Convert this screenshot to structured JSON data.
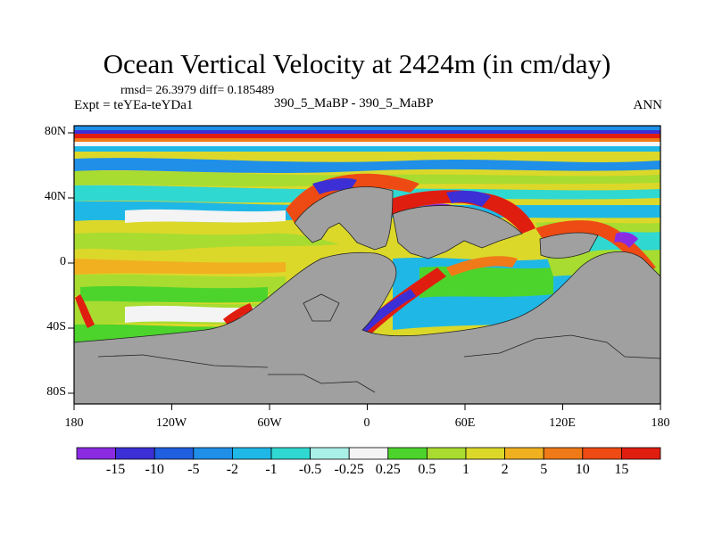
{
  "chart_data": {
    "type": "heatmap",
    "title": "Ocean Vertical Velocity at 2424m (in cm/day)",
    "stats_text": "rmsd= 26.3979 diff= 0.185489",
    "left_label": "Expt = teYEa-teYDa1",
    "center_label": "390_5_MaBP - 390_5_MaBP",
    "right_label": "ANN",
    "x_axis": {
      "ticks": [
        "180",
        "120W",
        "60W",
        "0",
        "60E",
        "120E",
        "180"
      ],
      "range": [
        -180,
        180
      ]
    },
    "y_axis": {
      "ticks": [
        "80N",
        "40N",
        "0",
        "40S",
        "80S"
      ],
      "range": [
        -90,
        90
      ]
    },
    "colorbar": {
      "levels": [
        "-15",
        "-10",
        "-5",
        "-2",
        "-1",
        "-0.5",
        "-0.25",
        "0.25",
        "0.5",
        "1",
        "2",
        "5",
        "10",
        "15"
      ],
      "colors": [
        "#8a2be2",
        "#3d2fd6",
        "#1f5fe0",
        "#1f8fe8",
        "#1fb8e6",
        "#2fd8d0",
        "#a8f0e8",
        "#f4f4f4",
        "#4cd42c",
        "#a8dc30",
        "#dcd82a",
        "#f0b020",
        "#f07a18",
        "#ee4a14",
        "#e01e10"
      ]
    },
    "land_color": "#a0a0a0"
  }
}
